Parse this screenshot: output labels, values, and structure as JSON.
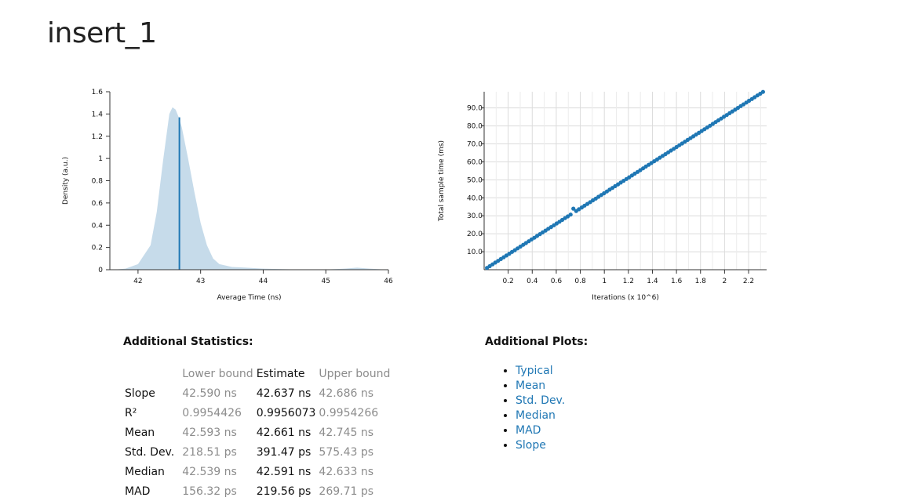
{
  "page": {
    "title": "insert_1"
  },
  "density_plot": {
    "ylabel": "Density (a.u.)",
    "xlabel": "Average Time (ns)",
    "x_ticks": [
      "42",
      "43",
      "44",
      "45",
      "46"
    ],
    "y_ticks": [
      "0",
      "0.2",
      "0.4",
      "0.6",
      "0.8",
      "1",
      "1.2",
      "1.4",
      "1.6"
    ]
  },
  "regression_plot": {
    "ylabel": "Total sample time (ms)",
    "xlabel": "Iterations (x 10^6)",
    "x_ticks": [
      "0.2",
      "0.4",
      "0.6",
      "0.8",
      "1",
      "1.2",
      "1.4",
      "1.6",
      "1.8",
      "2",
      "2.2"
    ],
    "y_ticks": [
      "10.0",
      "20.0",
      "30.0",
      "40.0",
      "50.0",
      "60.0",
      "70.0",
      "80.0",
      "90.0"
    ]
  },
  "chart_data": [
    {
      "type": "area",
      "xlabel": "Average Time (ns)",
      "ylabel": "Density (a.u.)",
      "xlim": [
        41.55,
        46.0
      ],
      "ylim": [
        0,
        1.6
      ],
      "x": [
        41.6,
        41.8,
        42.0,
        42.2,
        42.3,
        42.4,
        42.5,
        42.55,
        42.6,
        42.65,
        42.7,
        42.8,
        42.9,
        43.0,
        43.1,
        43.2,
        43.3,
        43.5,
        43.7,
        44.0,
        44.5,
        45.0,
        45.3,
        45.5,
        45.7,
        46.0
      ],
      "y": [
        0.0,
        0.01,
        0.05,
        0.22,
        0.52,
        0.98,
        1.4,
        1.46,
        1.44,
        1.37,
        1.28,
        1.0,
        0.7,
        0.42,
        0.22,
        0.1,
        0.05,
        0.025,
        0.02,
        0.01,
        0.003,
        0.002,
        0.01,
        0.018,
        0.01,
        0.0
      ],
      "estimate_line": {
        "x": 42.661,
        "y": 1.37
      }
    },
    {
      "type": "scatter",
      "xlabel": "Iterations (x 10^6)",
      "ylabel": "Total sample time (ms)",
      "xlim": [
        0.0,
        2.35
      ],
      "ylim": [
        0.0,
        99.0
      ],
      "slope_ns": 42.637
    }
  ],
  "stats": {
    "heading": "Additional Statistics:",
    "columns": [
      "",
      "Lower bound",
      "Estimate",
      "Upper bound"
    ],
    "rows": [
      {
        "label": "Slope",
        "lower": "42.590 ns",
        "estimate": "42.637 ns",
        "upper": "42.686 ns"
      },
      {
        "label": "R²",
        "lower": "0.9954426",
        "estimate": "0.9956073",
        "upper": "0.9954266"
      },
      {
        "label": "Mean",
        "lower": "42.593 ns",
        "estimate": "42.661 ns",
        "upper": "42.745 ns"
      },
      {
        "label": "Std. Dev.",
        "lower": "218.51 ps",
        "estimate": "391.47 ps",
        "upper": "575.43 ps"
      },
      {
        "label": "Median",
        "lower": "42.539 ns",
        "estimate": "42.591 ns",
        "upper": "42.633 ns"
      },
      {
        "label": "MAD",
        "lower": "156.32 ps",
        "estimate": "219.56 ps",
        "upper": "269.71 ps"
      }
    ]
  },
  "plots": {
    "heading": "Additional Plots:",
    "links": [
      "Typical",
      "Mean",
      "Std. Dev.",
      "Median",
      "MAD",
      "Slope"
    ]
  },
  "colors": {
    "fill": "#c6dbea",
    "line": "#1f77b4",
    "link": "#1f77b4"
  }
}
